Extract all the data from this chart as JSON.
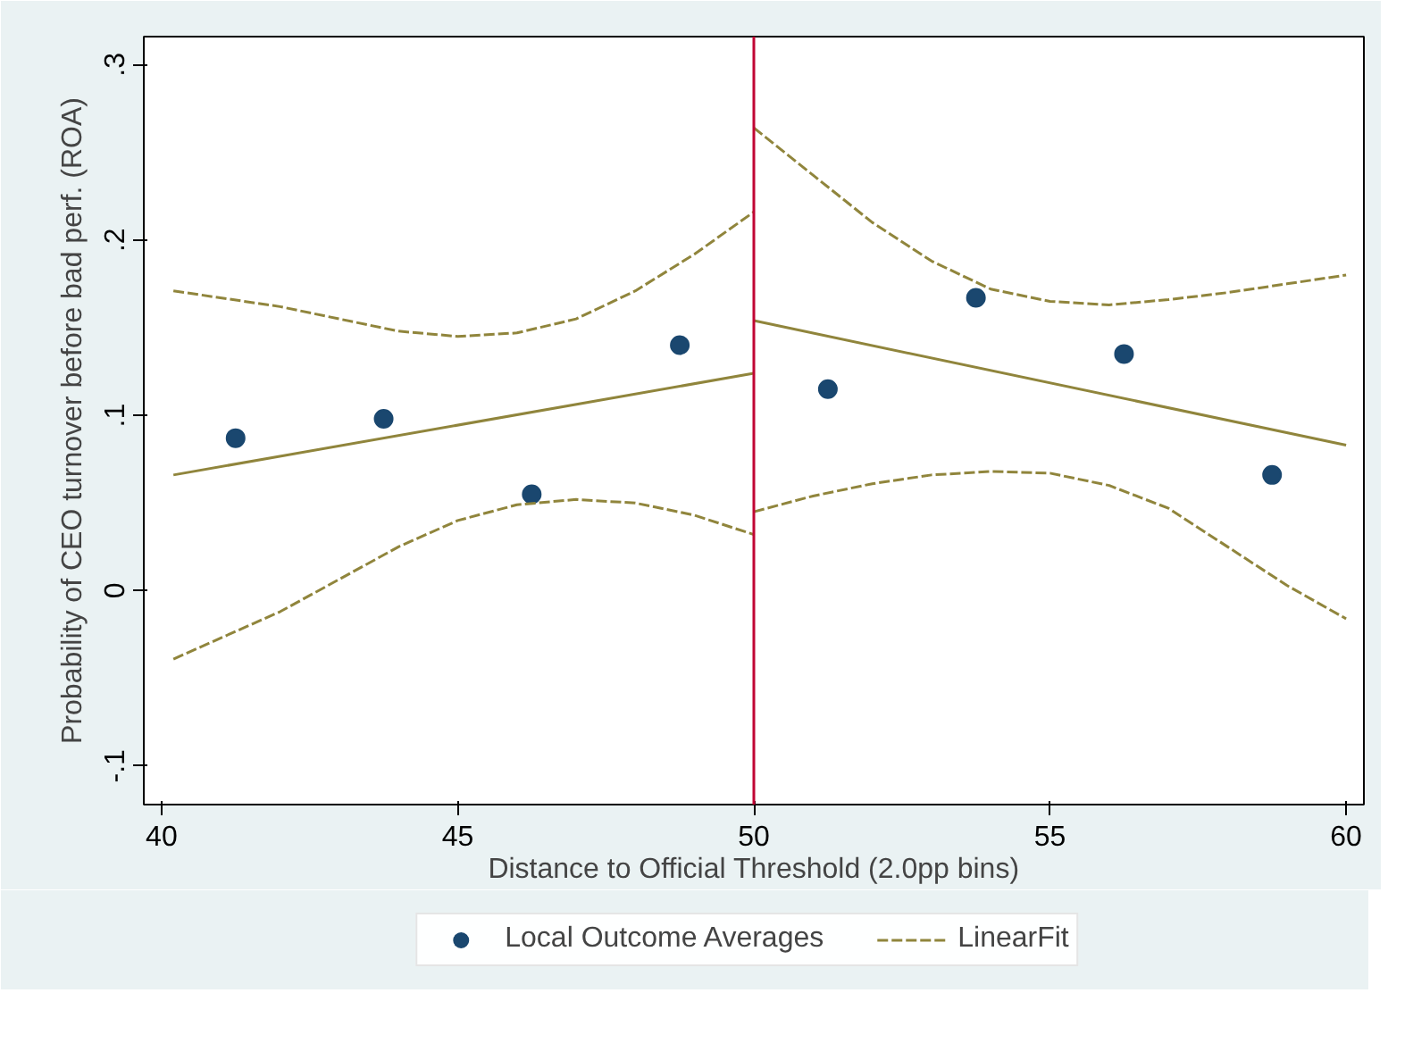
{
  "chart_data": {
    "type": "scatter",
    "xlabel": "Distance to Official Threshold (2.0pp bins)",
    "ylabel": "Probability of CEO turnover before bad perf. (ROA)",
    "xlim": [
      39.7,
      60.3
    ],
    "ylim": [
      -0.122,
      0.316
    ],
    "xticks": [
      40,
      45,
      50,
      55,
      60
    ],
    "yticks": [
      {
        "value": -0.1,
        "label": "-.1"
      },
      0,
      {
        "value": 0.1,
        "label": ".1"
      },
      {
        "value": 0.2,
        "label": ".2"
      },
      {
        "value": 0.3,
        "label": ".3"
      }
    ],
    "grid": false,
    "legend": "bottom",
    "ref_lines": [
      {
        "axis": "x",
        "value": 50,
        "color": "#c10534"
      }
    ],
    "series": [
      {
        "name": "Local Outcome Averages",
        "type": "scatter",
        "marker": "circle",
        "color": "#1a476f",
        "x": [
          41.25,
          43.75,
          46.25,
          48.75,
          51.25,
          53.75,
          56.25,
          58.75
        ],
        "values": [
          0.087,
          0.098,
          0.055,
          0.14,
          0.115,
          0.167,
          0.135,
          0.066
        ]
      },
      {
        "name": "LinearFit",
        "type": "line",
        "line_style": "dashed",
        "color": "#90853c",
        "x": [
          40.2,
          42,
          44,
          45,
          46,
          47,
          48,
          49,
          50
        ],
        "values": [
          0.171,
          0.162,
          0.148,
          0.145,
          0.147,
          0.155,
          0.171,
          0.192,
          0.216
        ]
      },
      {
        "type": "line",
        "line_style": "dashed",
        "color": "#90853c",
        "x": [
          40.2,
          42,
          44,
          45,
          46,
          47,
          48,
          49,
          50
        ],
        "values": [
          -0.039,
          -0.012,
          0.025,
          0.04,
          0.049,
          0.052,
          0.05,
          0.043,
          0.032
        ]
      },
      {
        "type": "line",
        "line_style": "dashed",
        "color": "#90853c",
        "x": [
          50,
          51,
          52,
          53,
          54,
          55,
          56,
          57,
          58,
          59,
          60
        ],
        "values": [
          0.264,
          0.237,
          0.21,
          0.188,
          0.172,
          0.165,
          0.163,
          0.166,
          0.17,
          0.175,
          0.18
        ]
      },
      {
        "type": "line",
        "line_style": "dashed",
        "color": "#90853c",
        "x": [
          50,
          51,
          52,
          53,
          54,
          55,
          56,
          57,
          58,
          59,
          60
        ],
        "values": [
          0.045,
          0.054,
          0.061,
          0.066,
          0.068,
          0.067,
          0.06,
          0.047,
          0.025,
          0.003,
          -0.016
        ]
      },
      {
        "type": "line",
        "line_style": "solid",
        "color": "#90853c",
        "x": [
          40.2,
          50
        ],
        "values": [
          0.066,
          0.124
        ]
      },
      {
        "type": "line",
        "line_style": "solid",
        "color": "#90853c",
        "x": [
          50,
          60
        ],
        "values": [
          0.154,
          0.083
        ]
      }
    ]
  }
}
